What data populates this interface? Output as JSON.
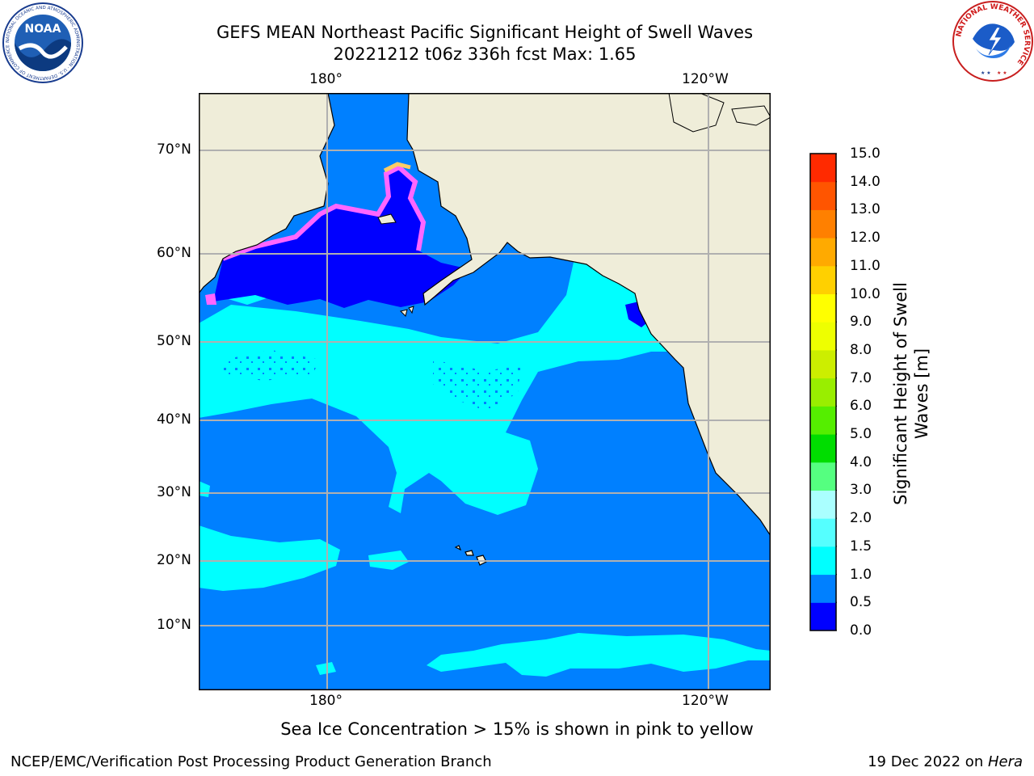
{
  "header": {
    "title_line1": "GEFS MEAN Northeast Pacific Significant Height of Swell Waves",
    "title_line2": "20221212 t06z 336h fcst   Max: 1.65"
  },
  "logos": {
    "left_name": "NOAA",
    "left_ring_text": "NATIONAL OCEANIC AND ATMOSPHERIC ADMINISTRATION · U.S. DEPARTMENT OF COMMERCE",
    "right_ring_text": "NATIONAL WEATHER SERVICE"
  },
  "map": {
    "lon_labels": [
      "180°",
      "120°W"
    ],
    "lat_labels": [
      "70°N",
      "60°N",
      "50°N",
      "40°N",
      "30°N",
      "20°N",
      "10°N"
    ],
    "colors": {
      "land": "#efedd9",
      "ocean_1": "#0080ff",
      "ocean_0": "#0000ff",
      "ocean_15": "#00ffff",
      "ice_pink": "#ff66ff",
      "ice_yellow": "#ffcc66",
      "grid": "#b0b0b0"
    }
  },
  "colorbar": {
    "label_line1": "Significant Height of Swell",
    "label_line2": "Waves [m]",
    "ticks": [
      "0.0",
      "0.5",
      "1.0",
      "1.5",
      "2.0",
      "3.0",
      "4.0",
      "5.0",
      "6.0",
      "7.0",
      "8.0",
      "9.0",
      "10.0",
      "11.0",
      "12.0",
      "13.0",
      "14.0",
      "15.0"
    ],
    "colors": [
      "#0000ff",
      "#0080ff",
      "#00ffff",
      "#55ffff",
      "#aaffff",
      "#55ff80",
      "#00dd00",
      "#55ee00",
      "#99ee00",
      "#ccee00",
      "#eeff00",
      "#ffff00",
      "#ffd000",
      "#ffaa00",
      "#ff8000",
      "#ff5500",
      "#ff2a00",
      "#ff0000"
    ]
  },
  "captions": {
    "ice_note": "Sea Ice Concentration > 15% is shown in pink to yellow",
    "credit": "NCEP/EMC/Verification Post Processing Product Generation Branch",
    "date": "19 Dec 2022 on ",
    "host": "Hera"
  }
}
